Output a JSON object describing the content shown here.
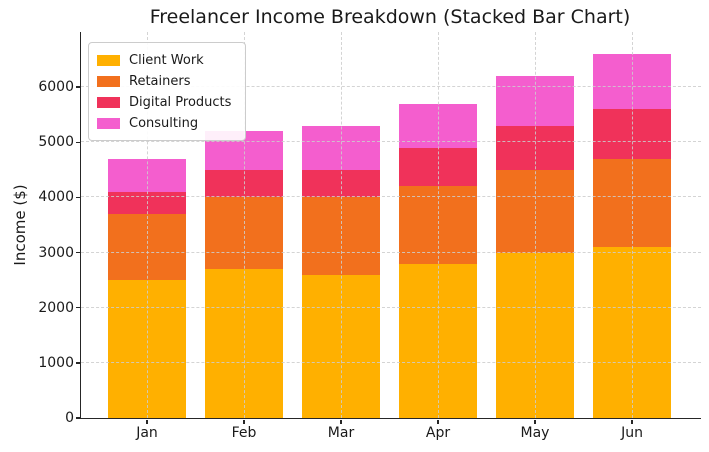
{
  "chart_data": {
    "type": "bar",
    "stacked": true,
    "title": "Freelancer Income Breakdown (Stacked Bar Chart)",
    "xlabel": "",
    "ylabel": "Income ($)",
    "categories": [
      "Jan",
      "Feb",
      "Mar",
      "Apr",
      "May",
      "Jun"
    ],
    "series": [
      {
        "name": "Client Work",
        "color": "#FFB000",
        "values": [
          2500,
          2700,
          2600,
          2800,
          3000,
          3100
        ]
      },
      {
        "name": "Retainers",
        "color": "#F2701D",
        "values": [
          1200,
          1300,
          1400,
          1400,
          1500,
          1600
        ]
      },
      {
        "name": "Digital Products",
        "color": "#F0325A",
        "values": [
          400,
          500,
          500,
          700,
          800,
          900
        ]
      },
      {
        "name": "Consulting",
        "color": "#F45ECE",
        "values": [
          600,
          700,
          800,
          800,
          900,
          1000
        ]
      }
    ],
    "stack_totals": [
      4700,
      5200,
      5300,
      5700,
      6200,
      6600
    ],
    "ylim": [
      0,
      7000
    ],
    "ytick_step": 1000,
    "ytick_labels": [
      "0",
      "1000",
      "2000",
      "3000",
      "4000",
      "5000",
      "6000"
    ],
    "grid": "dashed, horizontal and vertical, drawn over bars",
    "legend_position": "upper left",
    "background_color": "#ffffff",
    "axis_color": "#262626"
  }
}
